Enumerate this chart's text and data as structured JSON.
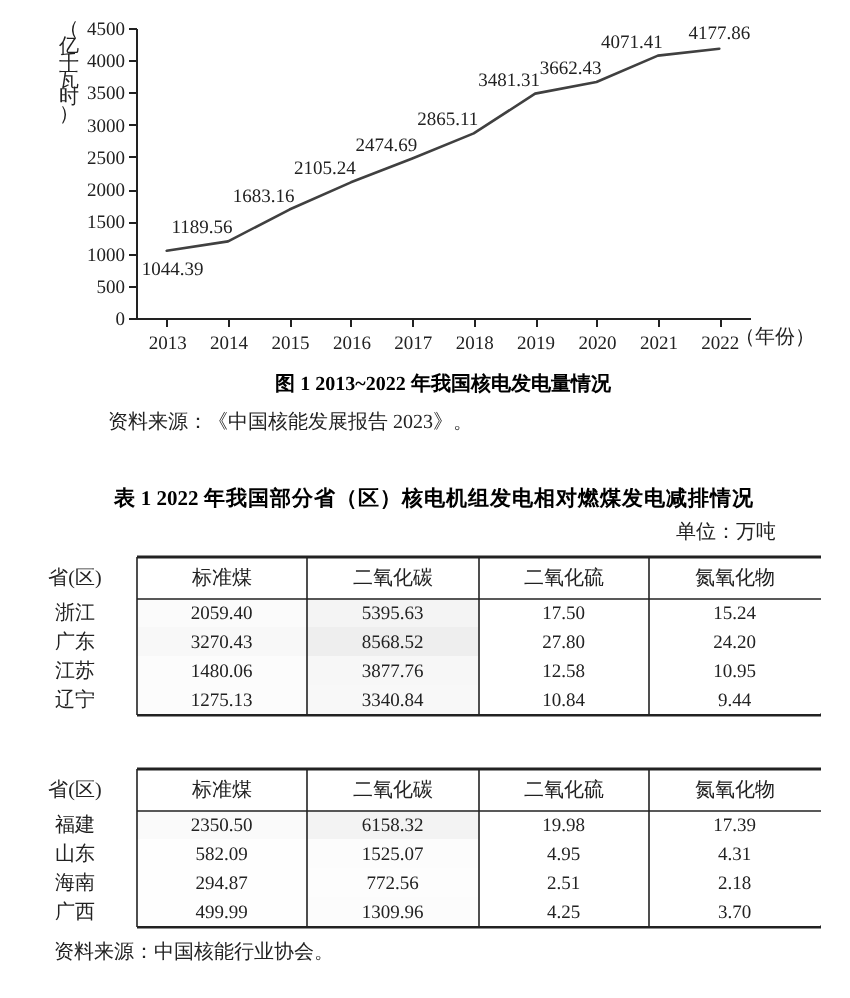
{
  "chart_data": [
    {
      "type": "line",
      "title": "图 1 2013~2022 年我国核电发电量情况",
      "ylabel": "（亿千瓦时）",
      "xlabel": "（年份）",
      "categories": [
        "2013",
        "2014",
        "2015",
        "2016",
        "2017",
        "2018",
        "2019",
        "2020",
        "2021",
        "2022"
      ],
      "values": [
        1044.39,
        1189.56,
        1683.16,
        2105.24,
        2474.69,
        2865.11,
        3481.31,
        3662.43,
        4071.41,
        4177.86
      ],
      "color": "#404040",
      "ylim": [
        0,
        4500
      ],
      "yticks": [
        0,
        500,
        1000,
        1500,
        2000,
        2500,
        3000,
        3500,
        4000,
        4500
      ],
      "data_labels": true,
      "annotations": [
        "资料来源：《中国核能发展报告 2023》。"
      ]
    },
    {
      "type": "heatmap",
      "title": "表 1 2022 年我国部分省（区）核电机组发电相对燃煤发电减排情况",
      "subtitle": "单位：万吨",
      "ylabel": "省(区)",
      "categories": [
        "标准煤",
        "二氧化碳",
        "二氧化硫",
        "氮氧化物"
      ],
      "y_categories": [
        "浙江",
        "广东",
        "江苏",
        "辽宁"
      ],
      "cells": [
        [
          2059.4,
          5395.63,
          17.5,
          15.24
        ],
        [
          3270.43,
          8568.52,
          27.8,
          24.2
        ],
        [
          1480.06,
          3877.76,
          12.58,
          10.95
        ],
        [
          1275.13,
          3340.84,
          10.84,
          9.44
        ]
      ],
      "cell_labels": [
        [
          "2059.40",
          "5395.63",
          "17.50",
          "15.24"
        ],
        [
          "3270.43",
          "8568.52",
          "27.80",
          "24.20"
        ],
        [
          "1480.06",
          "3877.76",
          "12.58",
          "10.95"
        ],
        [
          "1275.13",
          "3340.84",
          "10.84",
          "9.44"
        ]
      ],
      "data_labels": true,
      "grid": "x"
    },
    {
      "type": "heatmap",
      "ylabel": "省(区)",
      "categories": [
        "标准煤",
        "二氧化碳",
        "二氧化硫",
        "氮氧化物"
      ],
      "y_categories": [
        "福建",
        "山东",
        "海南",
        "广西"
      ],
      "cells": [
        [
          2350.5,
          6158.32,
          19.98,
          17.39
        ],
        [
          582.09,
          1525.07,
          4.95,
          4.31
        ],
        [
          294.87,
          772.56,
          2.51,
          2.18
        ],
        [
          499.99,
          1309.96,
          4.25,
          3.7
        ]
      ],
      "cell_labels": [
        [
          "2350.50",
          "6158.32",
          "19.98",
          "17.39"
        ],
        [
          "582.09",
          "1525.07",
          "4.95",
          "4.31"
        ],
        [
          "294.87",
          "772.56",
          "2.51",
          "2.18"
        ],
        [
          "499.99",
          "1309.96",
          "4.25",
          "3.70"
        ]
      ],
      "data_labels": true,
      "grid": "x",
      "annotations": [
        "资料来源：中国核能行业协会。"
      ]
    }
  ]
}
